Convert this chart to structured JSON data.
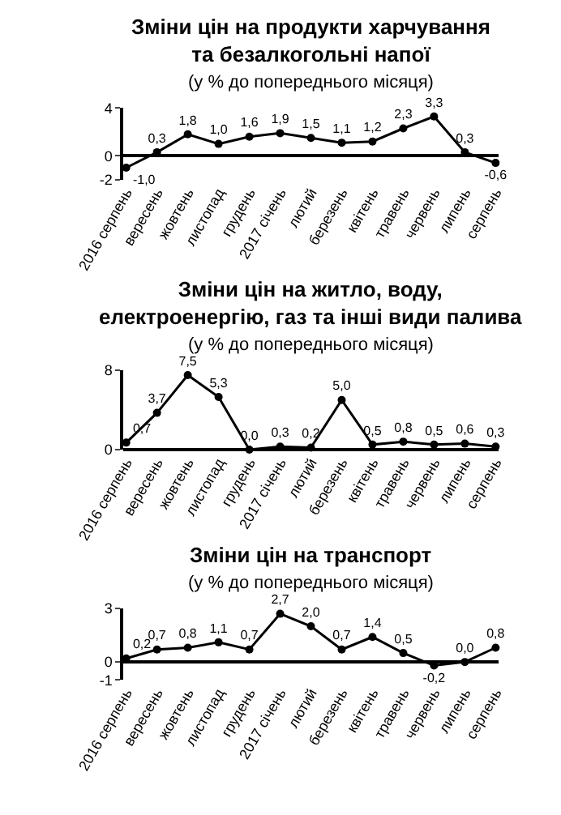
{
  "chart_data": [
    {
      "type": "line",
      "title": "Зміни цін на продукти харчування\nта безалкогольні напої",
      "subtitle": "(у % до попереднього місяця)",
      "categories": [
        "2016 серпень",
        "вересень",
        "жовтень",
        "листопад",
        "грудень",
        "2017 січень",
        "лютий",
        "березень",
        "квітень",
        "травень",
        "червень",
        "липень",
        "серпень"
      ],
      "series": [
        {
          "color": "#000000",
          "values": [
            -1.0,
            0.3,
            1.8,
            1.0,
            1.6,
            1.9,
            1.5,
            1.1,
            1.2,
            2.3,
            3.3,
            0.3,
            -0.6
          ],
          "value_labels": [
            "-1,0",
            "0,3",
            "1,8",
            "1,0",
            "1,6",
            "1,9",
            "1,5",
            "1,1",
            "1,2",
            "2,3",
            "3,3",
            "0,3",
            "-0,6"
          ]
        }
      ],
      "ylim": [
        -2,
        4
      ],
      "yticks": [
        -2,
        0,
        4
      ],
      "marker": "circle",
      "line_style": "solid"
    },
    {
      "type": "line",
      "title": "Зміни цін на житло, воду,\nелектроенергію, газ та інші види палива",
      "subtitle": "(у % до попереднього місяця)",
      "categories": [
        "2016 серпень",
        "вересень",
        "жовтень",
        "листопад",
        "грудень",
        "2017 січень",
        "лютий",
        "березень",
        "квітень",
        "травень",
        "червень",
        "липень",
        "серпень"
      ],
      "series": [
        {
          "color": "#000000",
          "values": [
            0.7,
            3.7,
            7.5,
            5.3,
            0.0,
            0.3,
            0.2,
            5.0,
            0.5,
            0.8,
            0.5,
            0.6,
            0.3
          ],
          "value_labels": [
            "0,7",
            "3,7",
            "7,5",
            "5,3",
            "0,0",
            "0,3",
            "0,2",
            "5,0",
            "0,5",
            "0,8",
            "0,5",
            "0,6",
            "0,3"
          ]
        }
      ],
      "ylim": [
        0,
        8
      ],
      "yticks": [
        0,
        8
      ],
      "marker": "circle",
      "line_style": "solid"
    },
    {
      "type": "line",
      "title": "Зміни цін на транспорт",
      "subtitle": "(у % до попереднього місяця)",
      "categories": [
        "2016 серпень",
        "вересень",
        "жовтень",
        "листопад",
        "грудень",
        "2017 січень",
        "лютий",
        "березень",
        "квітень",
        "травень",
        "червень",
        "липень",
        "серпень"
      ],
      "series": [
        {
          "color": "#000000",
          "values": [
            0.2,
            0.7,
            0.8,
            1.1,
            0.7,
            2.7,
            2.0,
            0.7,
            1.4,
            0.5,
            -0.2,
            0.0,
            0.8
          ],
          "value_labels": [
            "0,2",
            "0,7",
            "0,8",
            "1,1",
            "0,7",
            "2,7",
            "2,0",
            "0,7",
            "1,4",
            "0,5",
            "-0,2",
            "0,0",
            "0,8"
          ]
        }
      ],
      "ylim": [
        -1,
        3
      ],
      "yticks": [
        -1,
        0,
        3
      ],
      "marker": "circle",
      "line_style": "solid"
    }
  ]
}
